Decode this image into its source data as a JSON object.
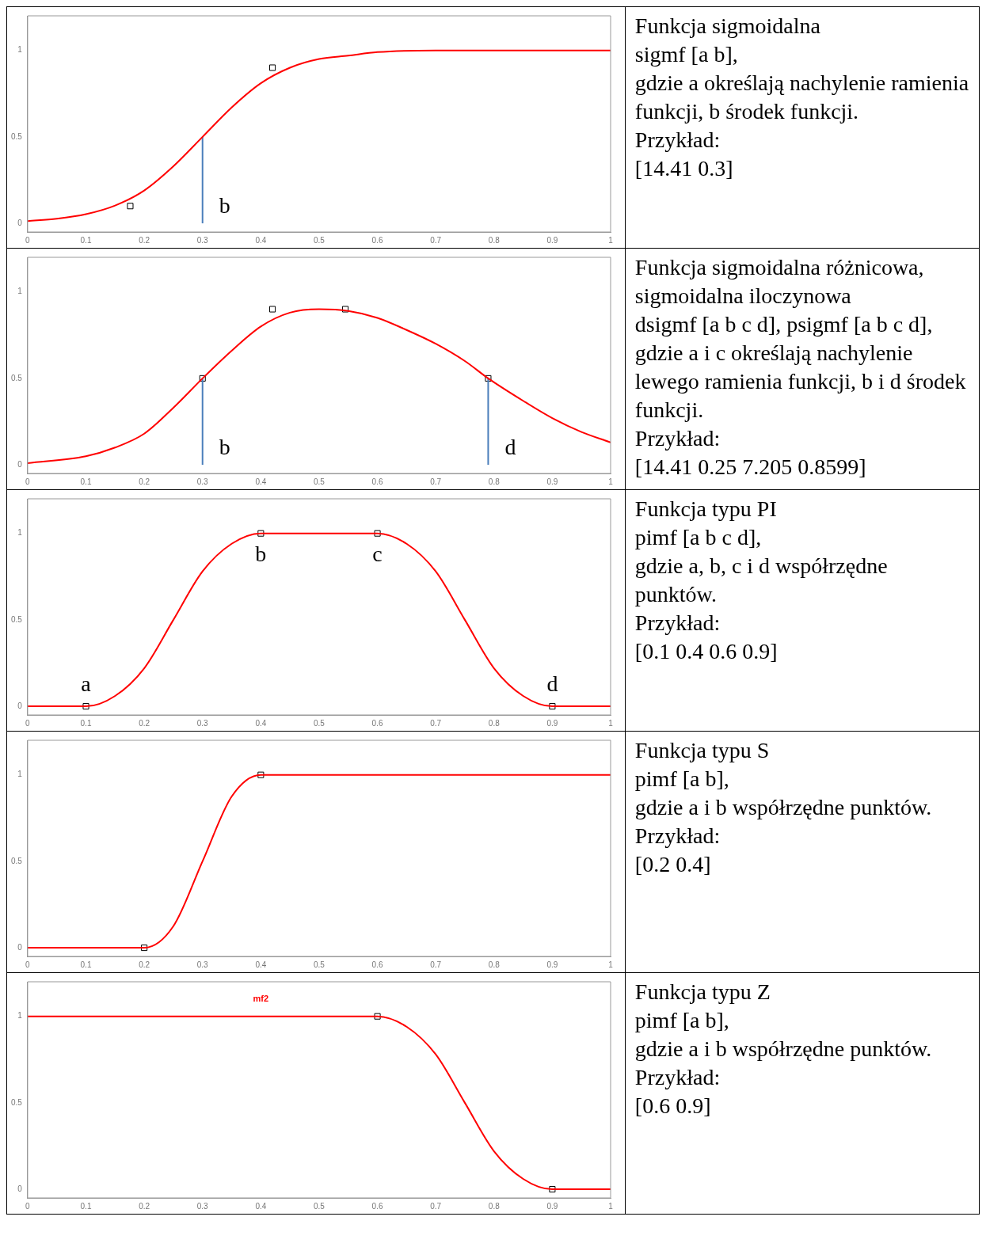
{
  "chart_data": [
    {
      "type": "line",
      "xlim": [
        0,
        1
      ],
      "ylim": [
        -0.05,
        1.2
      ],
      "xticks": [
        0,
        0.1,
        0.2,
        0.3,
        0.4,
        0.5,
        0.6,
        0.7,
        0.8,
        0.9,
        1
      ],
      "yticks": [
        0,
        0.5,
        1
      ],
      "grid": false,
      "legend": false,
      "line_style": "solid",
      "annotations": [
        {
          "text": "b",
          "x": 0.3,
          "y": 0
        }
      ],
      "series": [
        {
          "type": "line",
          "marker": "none",
          "color": "#ff0000",
          "x": [
            0,
            0.05,
            0.1,
            0.15,
            0.2,
            0.25,
            0.3,
            0.35,
            0.4,
            0.45,
            0.5,
            0.55,
            0.6,
            0.7,
            0.8,
            0.9,
            1
          ],
          "values": [
            0.013,
            0.027,
            0.053,
            0.103,
            0.19,
            0.33,
            0.5,
            0.67,
            0.81,
            0.9,
            0.95,
            0.97,
            0.99,
            1,
            1,
            1,
            1
          ]
        },
        {
          "type": "line",
          "marker": "none",
          "color": "#4a7ebb",
          "x": [
            0.3,
            0.3
          ],
          "values": [
            0,
            0.5
          ]
        },
        {
          "type": "scatter",
          "marker": "square",
          "color": "#000000",
          "x": [
            0.176,
            0.42
          ],
          "values": [
            0.1,
            0.9
          ]
        }
      ]
    },
    {
      "type": "other",
      "title": "Funkcja sigmoidalna",
      "annotations": [
        "sigmf [a b],",
        "gdzie a określają nachylenie ramienia funkcji, b środek funkcji.",
        "Przykład:",
        "[14.41 0.3]"
      ]
    },
    {
      "type": "line",
      "xlim": [
        0,
        1
      ],
      "ylim": [
        -0.05,
        1.2
      ],
      "xticks": [
        0,
        0.1,
        0.2,
        0.3,
        0.4,
        0.5,
        0.6,
        0.7,
        0.8,
        0.9,
        1
      ],
      "yticks": [
        0,
        0.5,
        1
      ],
      "grid": false,
      "legend": false,
      "line_style": "solid",
      "annotations": [
        {
          "text": "b",
          "x": 0.3,
          "y": 0
        },
        {
          "text": "d",
          "x": 0.79,
          "y": 0
        }
      ],
      "series": [
        {
          "type": "line",
          "marker": "none",
          "color": "#ff0000",
          "x": [
            0,
            0.1,
            0.15,
            0.2,
            0.25,
            0.3,
            0.35,
            0.4,
            0.45,
            0.5,
            0.55,
            0.6,
            0.65,
            0.7,
            0.75,
            0.79,
            0.85,
            0.9,
            0.95,
            1
          ],
          "values": [
            0.01,
            0.05,
            0.1,
            0.18,
            0.33,
            0.5,
            0.66,
            0.8,
            0.88,
            0.9,
            0.89,
            0.85,
            0.78,
            0.7,
            0.6,
            0.5,
            0.37,
            0.27,
            0.19,
            0.13
          ]
        },
        {
          "type": "line",
          "marker": "none",
          "color": "#4a7ebb",
          "x": [
            0.3,
            0.3
          ],
          "values": [
            0,
            0.5
          ]
        },
        {
          "type": "line",
          "marker": "none",
          "color": "#4a7ebb",
          "x": [
            0.79,
            0.79
          ],
          "values": [
            0,
            0.5
          ]
        },
        {
          "type": "scatter",
          "marker": "square",
          "color": "#000000",
          "x": [
            0.3,
            0.42,
            0.545,
            0.79
          ],
          "values": [
            0.5,
            0.9,
            0.9,
            0.5
          ]
        }
      ]
    },
    {
      "type": "other",
      "title": "Funkcja sigmoidalna różnicowa, sigmoidalna iloczynowa",
      "annotations": [
        "dsigmf [a b c d], psigmf [a b c d],",
        "gdzie a i c określają nachylenie lewego ramienia funkcji, b i d środek funkcji.",
        "Przykład:",
        "[14.41 0.25 7.205 0.8599]"
      ]
    },
    {
      "type": "line",
      "xlim": [
        0,
        1
      ],
      "ylim": [
        -0.05,
        1.2
      ],
      "xticks": [
        0,
        0.1,
        0.2,
        0.3,
        0.4,
        0.5,
        0.6,
        0.7,
        0.8,
        0.9,
        1
      ],
      "yticks": [
        0,
        0.5,
        1
      ],
      "grid": false,
      "legend": false,
      "line_style": "solid",
      "annotations": [
        {
          "text": "a",
          "x": 0.1,
          "y": 0
        },
        {
          "text": "b",
          "x": 0.4,
          "y": 1
        },
        {
          "text": "c",
          "x": 0.6,
          "y": 1
        },
        {
          "text": "d",
          "x": 0.9,
          "y": 0
        }
      ],
      "series": [
        {
          "type": "line",
          "marker": "none",
          "color": "#ff0000",
          "x": [
            0,
            0.1,
            0.15,
            0.2,
            0.25,
            0.3,
            0.35,
            0.4,
            0.6,
            0.65,
            0.7,
            0.75,
            0.8,
            0.85,
            0.9,
            1
          ],
          "values": [
            0,
            0,
            0.06,
            0.22,
            0.5,
            0.78,
            0.94,
            1,
            1,
            0.94,
            0.78,
            0.5,
            0.22,
            0.06,
            0,
            0
          ]
        },
        {
          "type": "scatter",
          "marker": "square",
          "color": "#000000",
          "x": [
            0.1,
            0.4,
            0.6,
            0.9
          ],
          "values": [
            0,
            1,
            1,
            0
          ]
        }
      ]
    },
    {
      "type": "other",
      "title": "Funkcja typu PI",
      "annotations": [
        "pimf [a b c d],",
        "gdzie a, b, c i d współrzędne punktów.",
        "Przykład:",
        "[0.1 0.4 0.6 0.9]"
      ]
    },
    {
      "type": "line",
      "xlim": [
        0,
        1
      ],
      "ylim": [
        -0.05,
        1.2
      ],
      "xticks": [
        0,
        0.1,
        0.2,
        0.3,
        0.4,
        0.5,
        0.6,
        0.7,
        0.8,
        0.9,
        1
      ],
      "yticks": [
        0,
        0.5,
        1
      ],
      "grid": false,
      "legend": false,
      "line_style": "solid",
      "series": [
        {
          "type": "line",
          "marker": "none",
          "color": "#ff0000",
          "x": [
            0,
            0.2,
            0.25,
            0.3,
            0.35,
            0.4,
            0.5,
            0.6,
            0.7,
            0.8,
            0.9,
            1
          ],
          "values": [
            0,
            0,
            0.125,
            0.5,
            0.875,
            1,
            1,
            1,
            1,
            1,
            1,
            1
          ]
        },
        {
          "type": "scatter",
          "marker": "square",
          "color": "#000000",
          "x": [
            0.2,
            0.4
          ],
          "values": [
            0,
            1
          ]
        }
      ]
    },
    {
      "type": "other",
      "title": "Funkcja typu S",
      "annotations": [
        "pimf [a b],",
        "gdzie a i b  współrzędne punktów.",
        "Przykład:",
        "[0.2 0.4]"
      ]
    },
    {
      "type": "line",
      "xlim": [
        0,
        1
      ],
      "ylim": [
        -0.05,
        1.2
      ],
      "xticks": [
        0,
        0.1,
        0.2,
        0.3,
        0.4,
        0.5,
        0.6,
        0.7,
        0.8,
        0.9,
        1
      ],
      "yticks": [
        0,
        0.5,
        1
      ],
      "grid": false,
      "legend": false,
      "line_style": "solid",
      "series": [
        {
          "type": "line",
          "marker": "none",
          "name": "mf2",
          "color": "#ff0000",
          "x": [
            0,
            0.1,
            0.2,
            0.3,
            0.4,
            0.5,
            0.6,
            0.65,
            0.7,
            0.75,
            0.8,
            0.85,
            0.9,
            1
          ],
          "values": [
            1,
            1,
            1,
            1,
            1,
            1,
            1,
            0.94,
            0.78,
            0.5,
            0.22,
            0.06,
            0,
            0
          ]
        },
        {
          "type": "scatter",
          "marker": "square",
          "color": "#000000",
          "x": [
            0.6,
            0.9
          ],
          "values": [
            1,
            0
          ]
        }
      ]
    },
    {
      "type": "other",
      "title": "Funkcja typu Z",
      "annotations": [
        "pimf [a b],",
        "gdzie a i b  współrzędne punktów.",
        "Przykład:",
        "[0.6 0.9]"
      ]
    }
  ]
}
